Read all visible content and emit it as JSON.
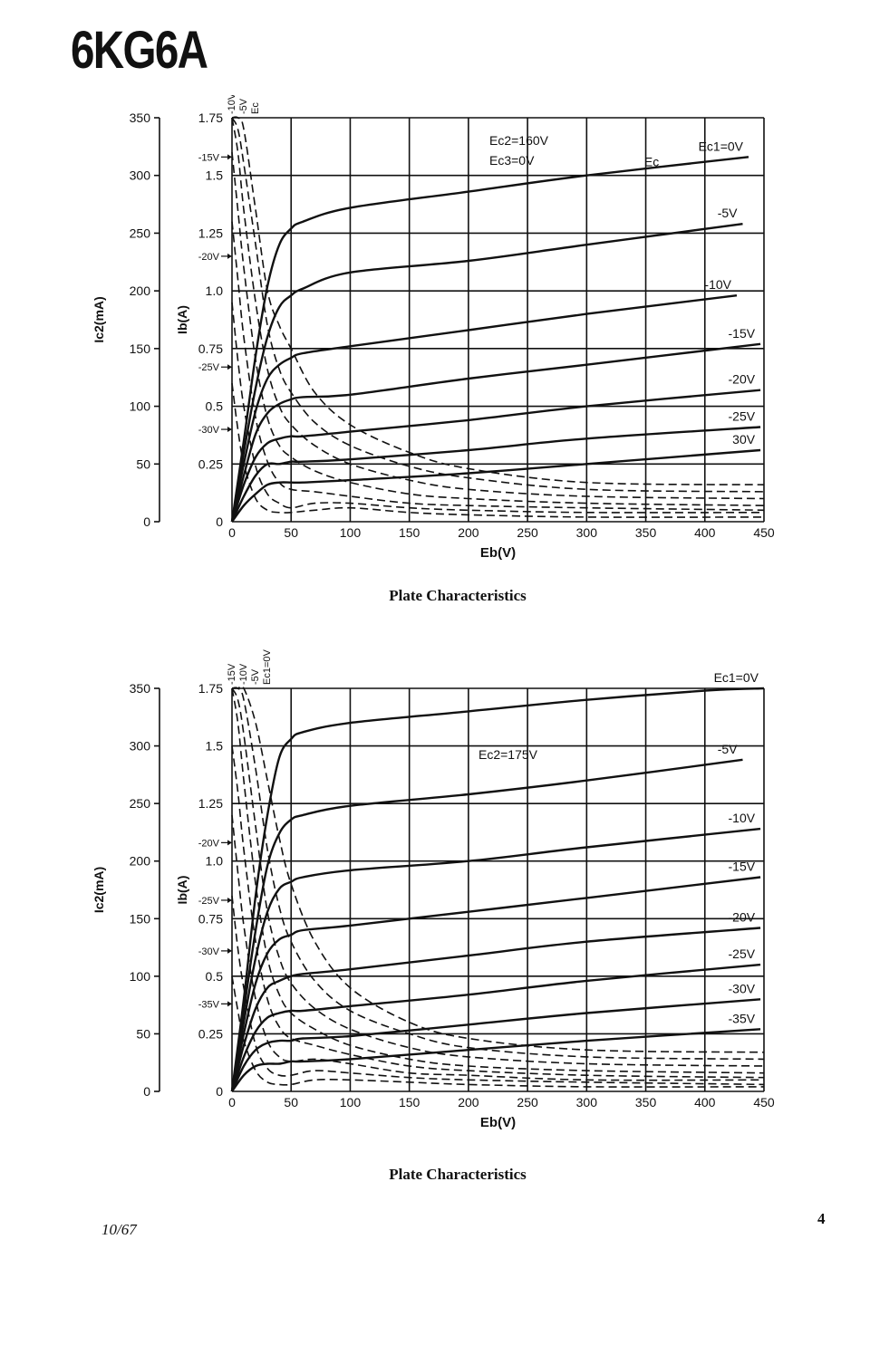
{
  "page": {
    "title": "6KG6A",
    "date": "10/67",
    "page_number": "4"
  },
  "chart_data": [
    {
      "type": "line",
      "title": "Plate Characteristics",
      "xlabel": "Eb(V)",
      "ylabel": "Ib(A)",
      "y2label": "Ic2(mA)",
      "xlim": [
        0,
        450
      ],
      "ylim": [
        0,
        1.75
      ],
      "y2lim": [
        0,
        350
      ],
      "x_ticks": [
        0,
        50,
        100,
        150,
        200,
        250,
        300,
        350,
        400,
        450
      ],
      "y_ticks": [
        0,
        0.25,
        0.5,
        0.75,
        1.0,
        1.25,
        1.5,
        1.75
      ],
      "y_tick_labels": [
        "0",
        "0.25",
        "0.5",
        "0.75",
        "1.0",
        "1.25",
        "1.5",
        "1.75"
      ],
      "y2_ticks": [
        0,
        50,
        100,
        150,
        200,
        250,
        300,
        350
      ],
      "grid": true,
      "conditions": [
        "Ec2=160V",
        "Ec3=0V"
      ],
      "top_labels": [
        "-10V",
        "-5V",
        "Ec"
      ],
      "ec_marker": "Ec",
      "series": [
        {
          "name": "Ec1=0V",
          "style": "solid",
          "x": [
            0,
            10,
            20,
            30,
            40,
            50,
            60,
            100,
            200,
            300,
            437
          ],
          "y": [
            0,
            0.35,
            0.72,
            1.02,
            1.2,
            1.27,
            1.3,
            1.36,
            1.43,
            1.5,
            1.58
          ]
        },
        {
          "name": "-5V",
          "style": "solid",
          "x": [
            0,
            10,
            20,
            30,
            40,
            50,
            60,
            100,
            200,
            300,
            432
          ],
          "y": [
            0,
            0.3,
            0.58,
            0.8,
            0.93,
            0.98,
            1.01,
            1.08,
            1.13,
            1.2,
            1.29
          ]
        },
        {
          "name": "-10V",
          "style": "solid",
          "x": [
            0,
            10,
            20,
            30,
            40,
            50,
            60,
            100,
            200,
            300,
            427
          ],
          "y": [
            0,
            0.25,
            0.48,
            0.62,
            0.68,
            0.71,
            0.73,
            0.76,
            0.83,
            0.9,
            0.98
          ]
        },
        {
          "name": "-15V",
          "style": "solid",
          "x": [
            0,
            10,
            20,
            30,
            40,
            50,
            60,
            100,
            200,
            300,
            447
          ],
          "y": [
            0,
            0.2,
            0.38,
            0.47,
            0.51,
            0.53,
            0.54,
            0.55,
            0.62,
            0.68,
            0.77
          ]
        },
        {
          "name": "-20V",
          "style": "solid",
          "x": [
            0,
            10,
            20,
            30,
            40,
            50,
            60,
            100,
            200,
            300,
            447
          ],
          "y": [
            0,
            0.16,
            0.28,
            0.34,
            0.36,
            0.37,
            0.37,
            0.39,
            0.44,
            0.5,
            0.57
          ]
        },
        {
          "name": "-25V",
          "style": "solid",
          "x": [
            0,
            10,
            20,
            30,
            40,
            50,
            60,
            100,
            200,
            300,
            447
          ],
          "y": [
            0,
            0.11,
            0.2,
            0.25,
            0.25,
            0.26,
            0.26,
            0.27,
            0.31,
            0.36,
            0.41
          ]
        },
        {
          "name": "30V",
          "style": "solid",
          "x": [
            0,
            10,
            20,
            30,
            40,
            50,
            60,
            100,
            200,
            300,
            447
          ],
          "y": [
            0,
            0.07,
            0.12,
            0.16,
            0.17,
            0.17,
            0.17,
            0.18,
            0.21,
            0.25,
            0.31
          ]
        },
        {
          "name": "Ic2 Ec1=0V",
          "style": "dashed",
          "x": [
            0,
            5,
            10,
            20,
            30,
            40,
            50,
            70,
            100,
            150,
            200,
            300,
            450
          ],
          "y": [
            1.75,
            1.75,
            1.7,
            1.35,
            1.0,
            0.85,
            0.75,
            0.56,
            0.42,
            0.3,
            0.23,
            0.17,
            0.16
          ]
        },
        {
          "name": "Ic2 -5V",
          "style": "dashed",
          "x": [
            0,
            5,
            10,
            20,
            30,
            40,
            50,
            70,
            100,
            150,
            200,
            300,
            450
          ],
          "y": [
            1.75,
            1.7,
            1.55,
            1.2,
            0.85,
            0.66,
            0.56,
            0.43,
            0.33,
            0.24,
            0.19,
            0.14,
            0.13
          ]
        },
        {
          "name": "Ic2 -10V",
          "style": "dashed",
          "x": [
            0,
            5,
            10,
            20,
            30,
            40,
            50,
            70,
            100,
            150,
            200,
            300,
            450
          ],
          "y": [
            1.75,
            1.6,
            1.35,
            0.95,
            0.66,
            0.5,
            0.42,
            0.33,
            0.25,
            0.18,
            0.14,
            0.11,
            0.1
          ]
        },
        {
          "name": "Ic2 -15V",
          "style": "dashed",
          "x": [
            0,
            5,
            10,
            20,
            30,
            40,
            50,
            70,
            100,
            150,
            200,
            300,
            450
          ],
          "y": [
            1.6,
            1.35,
            1.1,
            0.7,
            0.45,
            0.33,
            0.28,
            0.22,
            0.17,
            0.12,
            0.1,
            0.08,
            0.07
          ]
        },
        {
          "name": "Ic2 -20V",
          "style": "dashed",
          "x": [
            0,
            5,
            10,
            20,
            30,
            40,
            50,
            70,
            100,
            150,
            200,
            300,
            450
          ],
          "y": [
            1.3,
            1.05,
            0.8,
            0.45,
            0.26,
            0.17,
            0.14,
            0.13,
            0.11,
            0.08,
            0.07,
            0.06,
            0.05
          ]
        },
        {
          "name": "Ic2 -25V",
          "style": "dashed",
          "x": [
            0,
            5,
            10,
            20,
            30,
            40,
            50,
            70,
            100,
            150,
            200,
            300,
            450
          ],
          "y": [
            0.95,
            0.7,
            0.5,
            0.24,
            0.12,
            0.08,
            0.06,
            0.08,
            0.08,
            0.06,
            0.05,
            0.04,
            0.04
          ]
        },
        {
          "name": "Ic2 -30V",
          "style": "dashed",
          "x": [
            0,
            5,
            10,
            20,
            30,
            40,
            50,
            70,
            100,
            150,
            200,
            300,
            450
          ],
          "y": [
            0.6,
            0.4,
            0.25,
            0.1,
            0.05,
            0.04,
            0.04,
            0.05,
            0.06,
            0.04,
            0.03,
            0.02,
            0.02
          ]
        }
      ],
      "left_markers": [
        {
          "label": "-15V",
          "y": 1.58
        },
        {
          "label": "-20V",
          "y": 1.15
        },
        {
          "label": "-25V",
          "y": 0.67
        },
        {
          "label": "-30V",
          "y": 0.4
        }
      ]
    },
    {
      "type": "line",
      "title": "Plate Characteristics",
      "xlabel": "Eb(V)",
      "ylabel": "Ib(A)",
      "y2label": "Ic2(mA)",
      "xlim": [
        0,
        450
      ],
      "ylim": [
        0,
        1.75
      ],
      "y2lim": [
        0,
        350
      ],
      "x_ticks": [
        0,
        50,
        100,
        150,
        200,
        250,
        300,
        350,
        400,
        450
      ],
      "y_ticks": [
        0,
        0.25,
        0.5,
        0.75,
        1.0,
        1.25,
        1.5,
        1.75
      ],
      "y_tick_labels": [
        "0",
        "0.25",
        "0.5",
        "0.75",
        "1.0",
        "1.25",
        "1.5",
        "1.75"
      ],
      "y2_ticks": [
        0,
        50,
        100,
        150,
        200,
        250,
        300,
        350
      ],
      "grid": true,
      "conditions": [
        "Ec2=175V"
      ],
      "top_labels": [
        "-15V",
        "-10V",
        "-5V",
        "Ec1=0V"
      ],
      "series": [
        {
          "name": "Ec1=0V",
          "style": "solid",
          "x": [
            0,
            10,
            20,
            30,
            40,
            50,
            60,
            100,
            200,
            300,
            400,
            450
          ],
          "y": [
            0,
            0.4,
            0.85,
            1.2,
            1.45,
            1.53,
            1.56,
            1.6,
            1.65,
            1.7,
            1.74,
            1.75
          ]
        },
        {
          "name": "-5V",
          "style": "solid",
          "x": [
            0,
            10,
            20,
            30,
            40,
            50,
            60,
            100,
            200,
            300,
            432
          ],
          "y": [
            0,
            0.35,
            0.7,
            0.98,
            1.12,
            1.18,
            1.2,
            1.24,
            1.29,
            1.35,
            1.44
          ]
        },
        {
          "name": "-10V",
          "style": "solid",
          "x": [
            0,
            10,
            20,
            30,
            40,
            50,
            60,
            100,
            200,
            300,
            447
          ],
          "y": [
            0,
            0.3,
            0.58,
            0.78,
            0.88,
            0.91,
            0.93,
            0.96,
            1.0,
            1.06,
            1.14
          ]
        },
        {
          "name": "-15V",
          "style": "solid",
          "x": [
            0,
            10,
            20,
            30,
            40,
            50,
            60,
            100,
            200,
            300,
            447
          ],
          "y": [
            0,
            0.25,
            0.47,
            0.6,
            0.66,
            0.68,
            0.7,
            0.72,
            0.78,
            0.84,
            0.93
          ]
        },
        {
          "name": "-20V",
          "style": "solid",
          "x": [
            0,
            10,
            20,
            30,
            40,
            50,
            60,
            100,
            200,
            300,
            447
          ],
          "y": [
            0,
            0.2,
            0.36,
            0.45,
            0.48,
            0.5,
            0.51,
            0.53,
            0.59,
            0.65,
            0.71
          ]
        },
        {
          "name": "-25V",
          "style": "solid",
          "x": [
            0,
            10,
            20,
            30,
            40,
            50,
            60,
            100,
            200,
            300,
            447
          ],
          "y": [
            0,
            0.15,
            0.26,
            0.32,
            0.34,
            0.35,
            0.35,
            0.37,
            0.42,
            0.48,
            0.55
          ]
        },
        {
          "name": "-30V",
          "style": "solid",
          "x": [
            0,
            10,
            20,
            30,
            40,
            50,
            60,
            100,
            200,
            300,
            447
          ],
          "y": [
            0,
            0.11,
            0.18,
            0.21,
            0.22,
            0.22,
            0.23,
            0.24,
            0.29,
            0.34,
            0.4
          ]
        },
        {
          "name": "-35V",
          "style": "solid",
          "x": [
            0,
            10,
            20,
            30,
            40,
            50,
            60,
            100,
            200,
            300,
            447
          ],
          "y": [
            0,
            0.07,
            0.11,
            0.12,
            0.12,
            0.13,
            0.13,
            0.14,
            0.18,
            0.22,
            0.27
          ]
        },
        {
          "name": "Ic2 Ec1=0V",
          "style": "dashed",
          "x": [
            0,
            5,
            10,
            20,
            30,
            40,
            50,
            70,
            100,
            150,
            200,
            300,
            450
          ],
          "y": [
            1.75,
            1.75,
            1.75,
            1.6,
            1.35,
            1.1,
            0.9,
            0.65,
            0.45,
            0.3,
            0.23,
            0.18,
            0.17
          ]
        },
        {
          "name": "Ic2 -5V",
          "style": "dashed",
          "x": [
            0,
            5,
            10,
            20,
            30,
            40,
            50,
            70,
            100,
            150,
            200,
            300,
            450
          ],
          "y": [
            1.75,
            1.75,
            1.7,
            1.4,
            1.05,
            0.8,
            0.65,
            0.48,
            0.35,
            0.25,
            0.19,
            0.15,
            0.14
          ]
        },
        {
          "name": "Ic2 -10V",
          "style": "dashed",
          "x": [
            0,
            5,
            10,
            20,
            30,
            40,
            50,
            70,
            100,
            150,
            200,
            300,
            450
          ],
          "y": [
            1.75,
            1.7,
            1.55,
            1.15,
            0.78,
            0.58,
            0.47,
            0.36,
            0.27,
            0.19,
            0.15,
            0.12,
            0.11
          ]
        },
        {
          "name": "Ic2 -15V",
          "style": "dashed",
          "x": [
            0,
            5,
            10,
            20,
            30,
            40,
            50,
            70,
            100,
            150,
            200,
            300,
            450
          ],
          "y": [
            1.75,
            1.6,
            1.35,
            0.9,
            0.58,
            0.42,
            0.34,
            0.27,
            0.2,
            0.14,
            0.11,
            0.09,
            0.08
          ]
        },
        {
          "name": "Ic2 -20V",
          "style": "dashed",
          "x": [
            0,
            5,
            10,
            20,
            30,
            40,
            50,
            70,
            100,
            150,
            200,
            300,
            450
          ],
          "y": [
            1.5,
            1.3,
            1.05,
            0.65,
            0.4,
            0.28,
            0.23,
            0.2,
            0.16,
            0.11,
            0.09,
            0.07,
            0.06
          ]
        },
        {
          "name": "Ic2 -25V",
          "style": "dashed",
          "x": [
            0,
            5,
            10,
            20,
            30,
            40,
            50,
            70,
            100,
            150,
            200,
            300,
            450
          ],
          "y": [
            1.2,
            0.95,
            0.72,
            0.4,
            0.22,
            0.15,
            0.13,
            0.14,
            0.12,
            0.08,
            0.07,
            0.05,
            0.05
          ]
        },
        {
          "name": "Ic2 -30V",
          "style": "dashed",
          "x": [
            0,
            5,
            10,
            20,
            30,
            40,
            50,
            70,
            100,
            150,
            200,
            300,
            450
          ],
          "y": [
            0.85,
            0.62,
            0.45,
            0.2,
            0.1,
            0.07,
            0.07,
            0.09,
            0.08,
            0.06,
            0.05,
            0.04,
            0.03
          ]
        },
        {
          "name": "Ic2 -35V",
          "style": "dashed",
          "x": [
            0,
            5,
            10,
            20,
            30,
            40,
            50,
            70,
            100,
            150,
            200,
            300,
            450
          ],
          "y": [
            0.5,
            0.35,
            0.22,
            0.09,
            0.04,
            0.03,
            0.03,
            0.05,
            0.05,
            0.04,
            0.03,
            0.02,
            0.02
          ]
        }
      ],
      "left_markers": [
        {
          "label": "-20V",
          "y": 1.08
        },
        {
          "label": "-25V",
          "y": 0.83
        },
        {
          "label": "-30V",
          "y": 0.61
        },
        {
          "label": "-35V",
          "y": 0.38
        }
      ]
    }
  ]
}
